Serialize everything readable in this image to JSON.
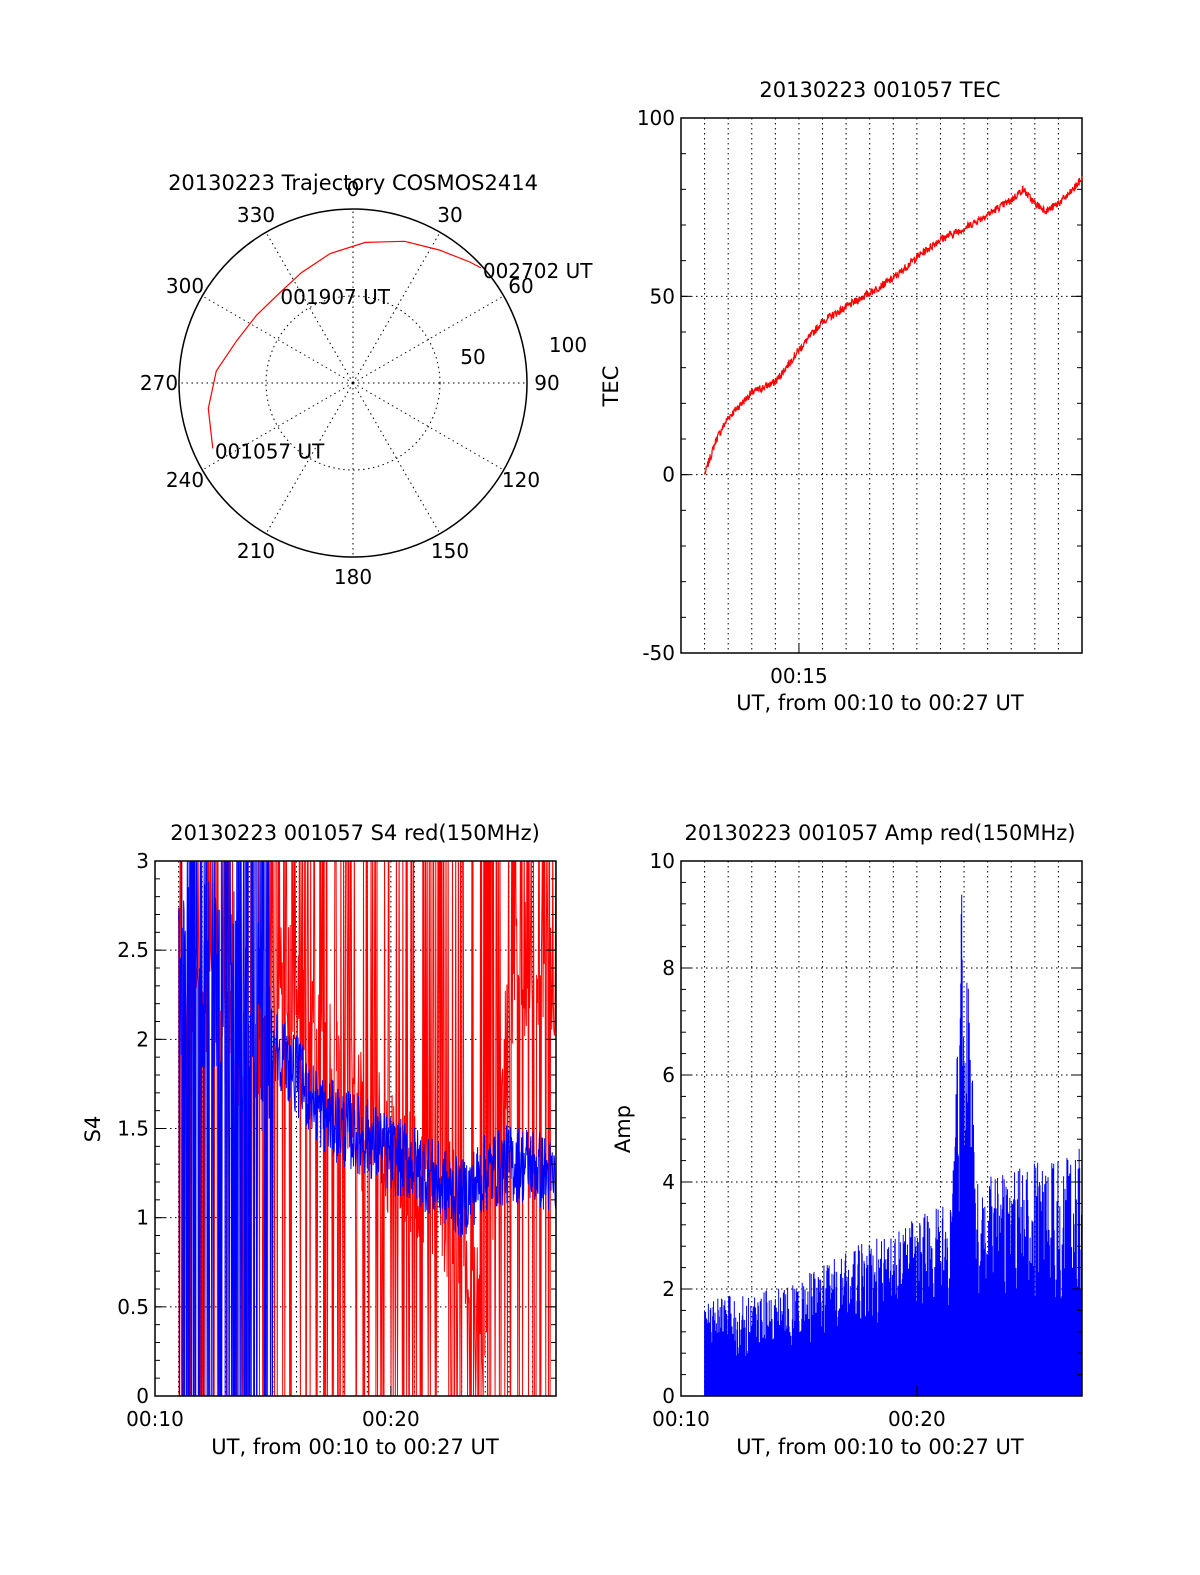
{
  "chart_data": [
    {
      "id": "trajectory",
      "type": "polar-trajectory",
      "title": "20130223 Trajectory COSMOS2414",
      "azimuth_labels": [
        "0",
        "30",
        "60",
        "90",
        "120",
        "150",
        "180",
        "210",
        "240",
        "270",
        "300",
        "330"
      ],
      "radial_labels": [
        "50",
        "100"
      ],
      "elevation_range": [
        0,
        90
      ],
      "series": [
        {
          "color": "#ff0000",
          "points": [
            {
              "az": 245,
              "el": 10
            },
            {
              "az": 260,
              "el": 14
            },
            {
              "az": 275,
              "el": 19
            },
            {
              "az": 290,
              "el": 26
            },
            {
              "az": 305,
              "el": 29
            },
            {
              "az": 320,
              "el": 30
            },
            {
              "az": 335,
              "el": 27
            },
            {
              "az": 350,
              "el": 22
            },
            {
              "az": 5,
              "el": 17
            },
            {
              "az": 20,
              "el": 12
            },
            {
              "az": 33,
              "el": 8
            },
            {
              "az": 44,
              "el": 3
            },
            {
              "az": 48,
              "el": 1
            }
          ]
        }
      ],
      "annotations": [
        {
          "text": "001057 UT",
          "az": 245,
          "el": 10
        },
        {
          "text": "001907 UT",
          "az": 320,
          "el": 30
        },
        {
          "text": "002702 UT",
          "az": 48,
          "el": 1
        }
      ]
    },
    {
      "id": "tec",
      "type": "line",
      "title": "20130223 001057 TEC",
      "xlabel": "UT, from 00:10 to 00:27 UT",
      "ylabel": "TEC",
      "xlim": [
        "00:10",
        "00:27"
      ],
      "ylim": [
        -50,
        100
      ],
      "yticks": [
        "-50",
        "0",
        "50",
        "100"
      ],
      "xticks": [
        "00:15"
      ],
      "grid": true,
      "series": [
        {
          "color": "#ff0000",
          "x": [
            "00:11",
            "00:11:30",
            "00:12",
            "00:13",
            "00:14",
            "00:15",
            "00:16",
            "00:17",
            "00:18",
            "00:19",
            "00:20",
            "00:21",
            "00:22",
            "00:23",
            "00:24",
            "00:24:30",
            "00:25",
            "00:25:30",
            "00:26",
            "00:26:30",
            "00:27"
          ],
          "values": [
            0,
            10,
            16,
            23,
            26,
            35,
            43,
            47,
            51,
            55,
            61,
            66,
            69,
            73,
            77,
            80,
            76,
            74,
            76,
            79,
            83
          ]
        }
      ]
    },
    {
      "id": "s4",
      "type": "line",
      "title": "20130223 001057 S4 red(150MHz)",
      "xlabel": "UT, from 00:10 to 00:27 UT",
      "ylabel": "S4",
      "xlim": [
        "00:10",
        "00:27"
      ],
      "ylim": [
        0,
        3
      ],
      "yticks": [
        "0",
        "0.5",
        "1",
        "1.5",
        "2",
        "2.5",
        "3"
      ],
      "xticks": [
        "00:10",
        "00:20"
      ],
      "grid": true,
      "series": [
        {
          "color": "#ff0000",
          "x": [
            "00:11",
            "00:12",
            "00:13",
            "00:14",
            "00:15",
            "00:16",
            "00:17",
            "00:18",
            "00:19",
            "00:20",
            "00:21",
            "00:22",
            "00:23",
            "00:24",
            "00:25",
            "00:26",
            "00:27"
          ],
          "values": [
            2.5,
            2.2,
            2.0,
            1.8,
            2.4,
            2.2,
            1.9,
            1.7,
            1.5,
            1.4,
            1.2,
            1.1,
            1.0,
            0.3,
            2.2,
            2.5,
            2.4
          ]
        },
        {
          "color": "#0000ff",
          "x": [
            "00:11",
            "00:12",
            "00:13",
            "00:14",
            "00:15",
            "00:16",
            "00:17",
            "00:18",
            "00:19",
            "00:20",
            "00:21",
            "00:22",
            "00:23",
            "00:24",
            "00:25",
            "00:26",
            "00:27"
          ],
          "values": [
            2.5,
            2.4,
            2.3,
            2.1,
            2.0,
            1.8,
            1.6,
            1.5,
            1.45,
            1.35,
            1.3,
            1.2,
            1.1,
            1.25,
            1.3,
            1.3,
            1.2
          ]
        }
      ]
    },
    {
      "id": "amp",
      "type": "area",
      "title": "20130223 001057 Amp red(150MHz)",
      "xlabel": "UT, from 00:10 to 00:27 UT",
      "ylabel": "Amp",
      "xlim": [
        "00:10",
        "00:27"
      ],
      "ylim": [
        0,
        10
      ],
      "yticks": [
        "0",
        "2",
        "4",
        "6",
        "8",
        "10"
      ],
      "xticks": [
        "00:10",
        "00:20"
      ],
      "grid": true,
      "series": [
        {
          "color": "#0000ff",
          "x": [
            "00:11",
            "00:12",
            "00:13",
            "00:14",
            "00:15",
            "00:16",
            "00:17",
            "00:18",
            "00:19",
            "00:20",
            "00:21",
            "00:21:30",
            "00:22",
            "00:22:30",
            "00:23",
            "00:24",
            "00:25",
            "00:26",
            "00:27"
          ],
          "values": [
            1.2,
            1.3,
            1.3,
            1.4,
            1.5,
            1.7,
            1.9,
            2.0,
            2.1,
            2.3,
            2.5,
            2.6,
            7.5,
            2.8,
            2.9,
            2.9,
            3.0,
            3.1,
            3.2
          ]
        }
      ]
    }
  ]
}
